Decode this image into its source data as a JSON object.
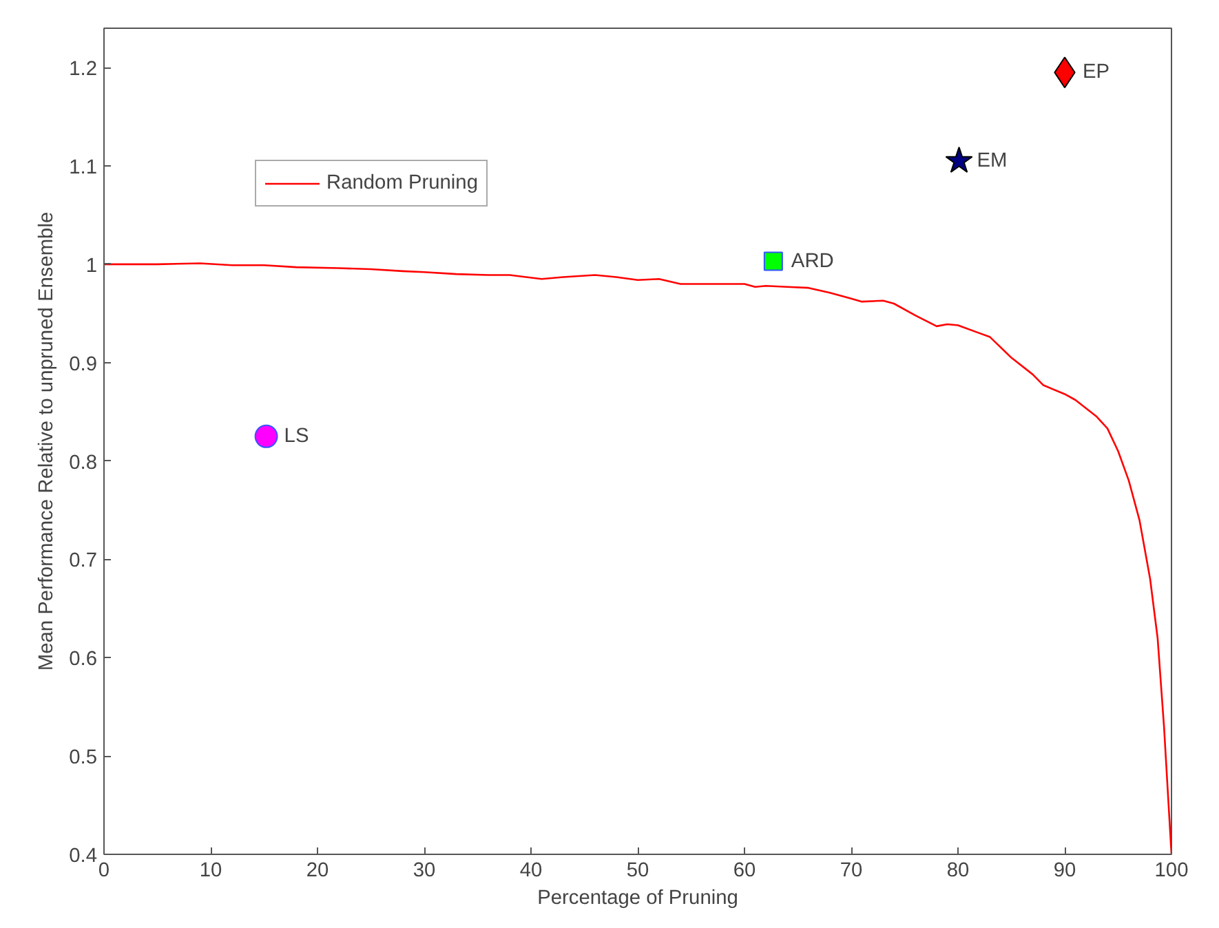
{
  "chart_data": {
    "type": "line",
    "xlabel": "Percentage of Pruning",
    "ylabel": "Mean Performance Relative to unpruned Ensemble",
    "xlim": [
      0,
      100
    ],
    "ylim": [
      0.4,
      1.24
    ],
    "xticks": [
      0,
      10,
      20,
      30,
      40,
      50,
      60,
      70,
      80,
      90,
      100
    ],
    "yticks": [
      0.4,
      0.5,
      0.6,
      0.7,
      0.8,
      0.9,
      1,
      1.1,
      1.2
    ],
    "legend": "top left",
    "grid": false,
    "series": [
      {
        "name": "Random Pruning",
        "color": "#ff0000",
        "marker": "none",
        "line_style": "solid",
        "x": [
          0,
          5,
          9,
          12,
          15,
          18,
          22,
          25,
          28,
          30,
          33,
          36,
          38,
          41,
          43,
          46,
          48,
          50,
          52,
          54,
          56,
          58,
          60,
          61,
          62,
          64,
          66,
          68,
          70,
          71,
          73,
          74,
          76,
          78,
          79,
          80,
          82,
          83,
          85,
          87,
          88,
          90,
          91,
          93,
          94,
          95,
          96,
          97,
          98,
          98.7,
          99.3,
          100
        ],
        "values": [
          1.0,
          1.0,
          1.001,
          0.999,
          0.999,
          0.997,
          0.996,
          0.995,
          0.993,
          0.992,
          0.99,
          0.989,
          0.989,
          0.985,
          0.987,
          0.989,
          0.987,
          0.984,
          0.985,
          0.98,
          0.98,
          0.98,
          0.98,
          0.977,
          0.978,
          0.977,
          0.976,
          0.971,
          0.965,
          0.962,
          0.963,
          0.96,
          0.948,
          0.937,
          0.939,
          0.938,
          0.93,
          0.926,
          0.905,
          0.888,
          0.877,
          0.868,
          0.862,
          0.845,
          0.833,
          0.81,
          0.78,
          0.74,
          0.68,
          0.62,
          0.53,
          0.4
        ]
      },
      {
        "name": "LS",
        "type": "scatter",
        "color": "#ff00ff",
        "marker": "circle",
        "x": [
          15.2
        ],
        "values": [
          0.825
        ]
      },
      {
        "name": "ARD",
        "type": "scatter",
        "color": "#00ff00",
        "marker": "square",
        "x": [
          62.7
        ],
        "values": [
          1.003
        ]
      },
      {
        "name": "EM",
        "type": "scatter",
        "color": "#000080",
        "marker": "star",
        "x": [
          80.1
        ],
        "values": [
          1.105
        ]
      },
      {
        "name": "EP",
        "type": "scatter",
        "color": "#ff0000",
        "marker": "diamond",
        "x": [
          90.0
        ],
        "values": [
          1.195
        ]
      }
    ]
  }
}
